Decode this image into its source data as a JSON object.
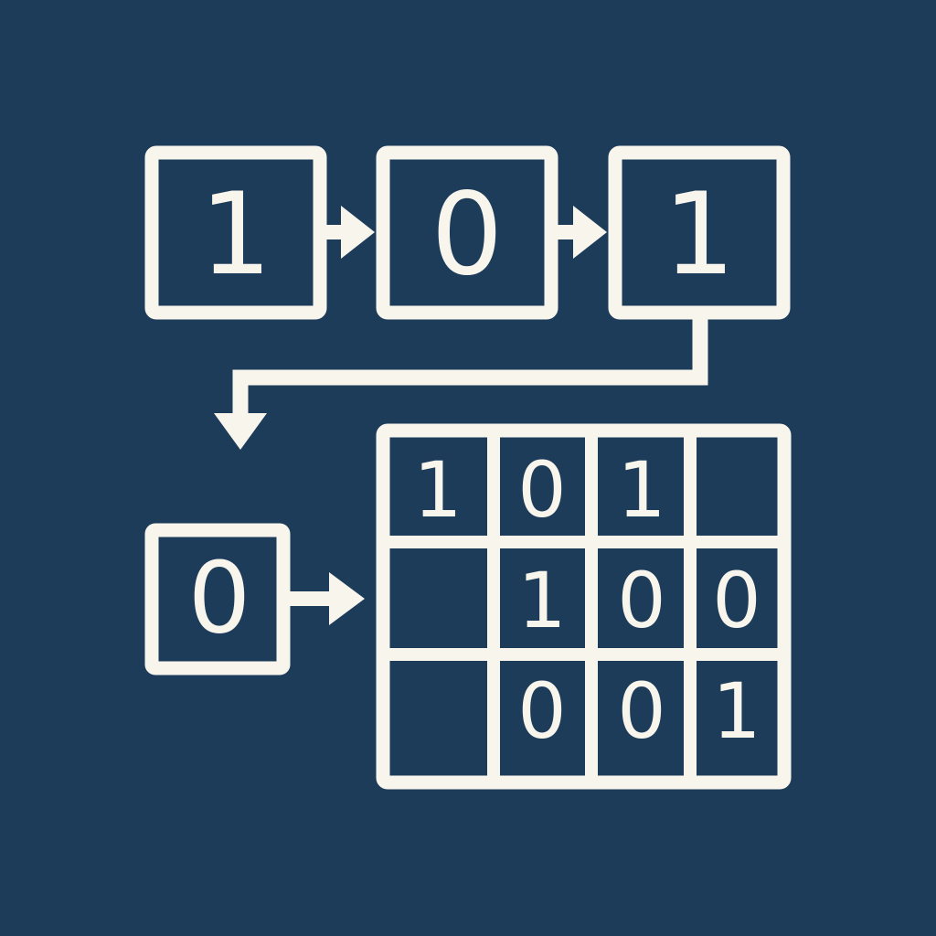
{
  "colors": {
    "background": "#1d3c5a",
    "foreground": "#f8f5ec"
  },
  "top_row": [
    "1",
    "0",
    "1"
  ],
  "single_box": "0",
  "grid": [
    [
      "1",
      "0",
      "1",
      ""
    ],
    [
      "",
      "1",
      "0",
      "0"
    ],
    [
      "",
      "0",
      "0",
      "1"
    ]
  ]
}
